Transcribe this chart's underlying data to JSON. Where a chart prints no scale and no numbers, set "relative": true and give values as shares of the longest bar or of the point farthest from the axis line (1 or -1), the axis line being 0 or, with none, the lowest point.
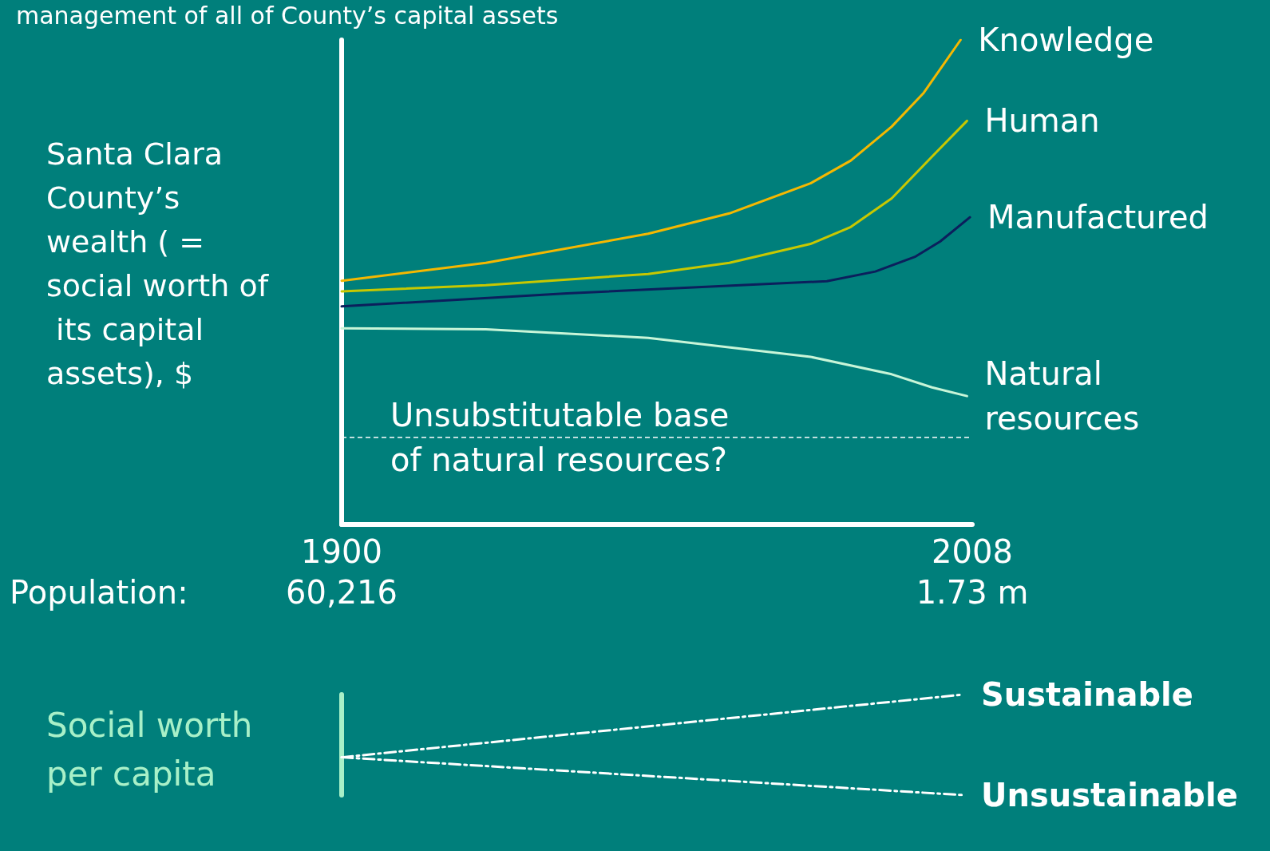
{
  "chart_data": [
    {
      "type": "line",
      "title": "management of all of County’s capital assets",
      "ylabel": "Santa Clara County’s wealth ( = social worth of its capital assets), $",
      "relative": true,
      "xlim": [
        1900,
        2008
      ],
      "xticks": [
        1900,
        2008
      ],
      "tick_labels": "x",
      "grid": false,
      "legend": false,
      "marker": "none",
      "line_style": "solid",
      "annotations": [
        "Population:",
        "60,216",
        "1.73 m"
      ],
      "ref_lines": [
        {
          "axis": "y",
          "value": 0.179,
          "label": "Unsubstitutable base\nof natural resources?",
          "color": "#ffffff",
          "line_style": "dashed"
        }
      ],
      "series": [
        {
          "name": "Knowledge",
          "color": "#f5b800",
          "x": [
            1900,
            1924.7,
            1952.5,
            1966.4,
            1980.3,
            1987.2,
            1994.2,
            1999.7,
            2006
          ],
          "values": [
            0.503,
            0.54,
            0.6,
            0.642,
            0.704,
            0.751,
            0.821,
            0.891,
            1
          ]
        },
        {
          "name": "Human",
          "color": "#c8c800",
          "x": [
            1900,
            1924.7,
            1952.5,
            1966.4,
            1980.3,
            1987.2,
            1994.2,
            2001.1,
            2007.1
          ],
          "values": [
            0.481,
            0.494,
            0.517,
            0.54,
            0.579,
            0.614,
            0.673,
            0.759,
            0.833
          ]
        },
        {
          "name": "Manufactured",
          "color": "#0b1f5c",
          "x": [
            1900,
            1938.6,
            1983.1,
            1991.4,
            1998.3,
            2002.5,
            2007.6
          ],
          "values": [
            0.45,
            0.477,
            0.502,
            0.522,
            0.553,
            0.584,
            0.634
          ]
        },
        {
          "name": "Natural resources",
          "color": "#c8f5d8",
          "x": [
            1900,
            1924.7,
            1952.5,
            1980.3,
            1994.2,
            2001.1,
            2007.1
          ],
          "values": [
            0.405,
            0.403,
            0.385,
            0.346,
            0.31,
            0.283,
            0.265
          ]
        }
      ]
    },
    {
      "type": "line",
      "ylabel": "Social worth\nper capita",
      "relative": true,
      "categories": [
        null,
        null
      ],
      "tick_labels": false,
      "legend": false,
      "marker": "none",
      "line_style": "dashed",
      "series": [
        {
          "name": "Sustainable",
          "color": "#ffffff",
          "values": [
            0.376,
            1
          ]
        },
        {
          "name": "Unsustainable",
          "color": "#ffffff",
          "values": [
            0.376,
            0
          ]
        }
      ]
    }
  ]
}
